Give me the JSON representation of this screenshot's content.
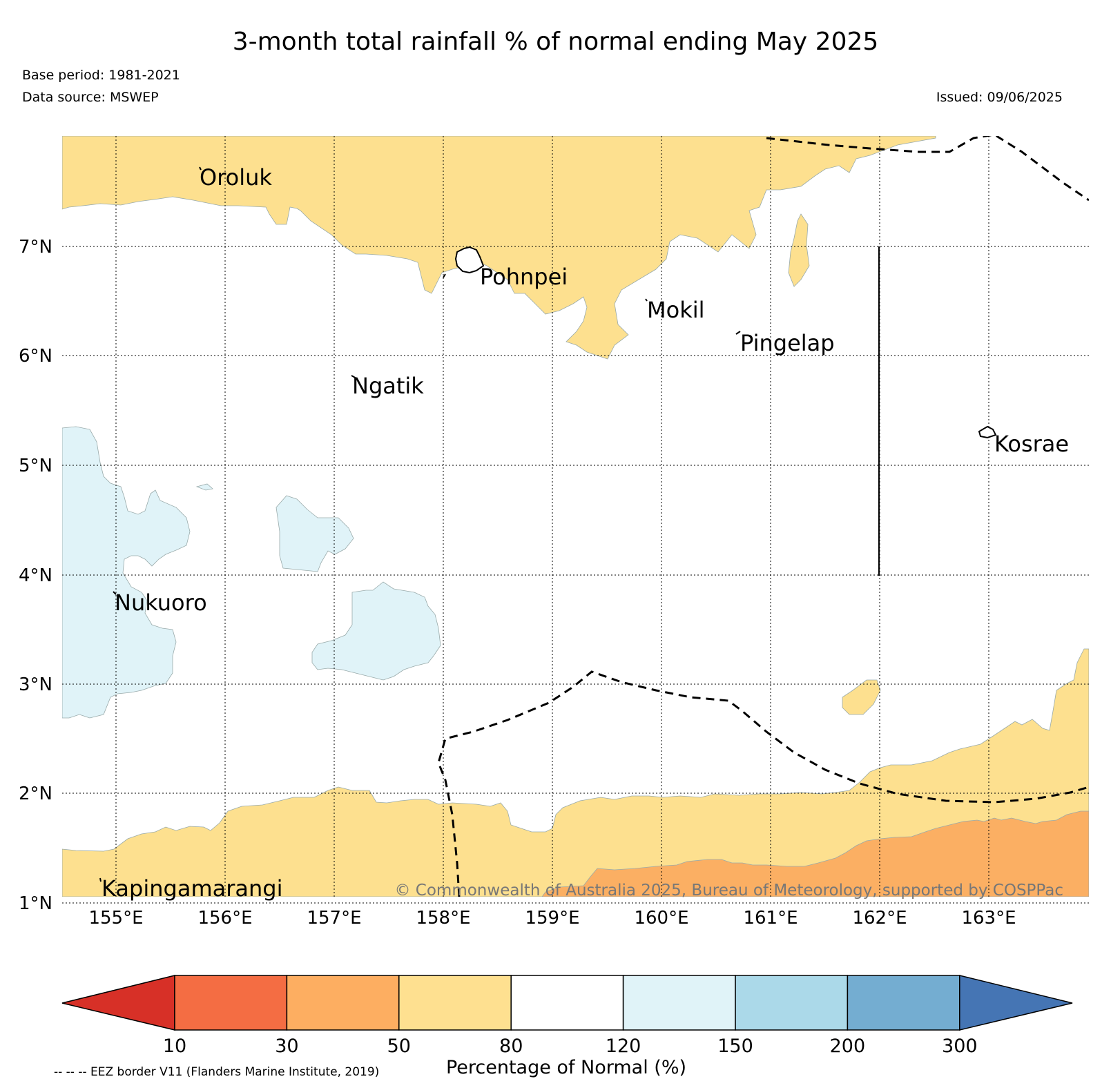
{
  "header": {
    "title": "3-month total rainfall % of normal ending May 2025",
    "base_period": "Base period: 1981-2021",
    "data_source": "Data source: MSWEP",
    "issued": "Issued: 09/06/2025"
  },
  "map": {
    "lon_ticks": [
      "155°E",
      "156°E",
      "157°E",
      "158°E",
      "159°E",
      "160°E",
      "161°E",
      "162°E",
      "163°E"
    ],
    "lat_ticks": [
      "7°N",
      "6°N",
      "5°N",
      "4°N",
      "3°N",
      "2°N",
      "1°N"
    ],
    "places": [
      {
        "name": "Oroluk"
      },
      {
        "name": "Pohnpei"
      },
      {
        "name": "Mokil"
      },
      {
        "name": "Pingelap"
      },
      {
        "name": "Ngatik"
      },
      {
        "name": "Kosrae"
      },
      {
        "name": "Nukuoro"
      },
      {
        "name": "Kapingamarangi"
      }
    ],
    "copyright": "© Commonwealth of Australia 2025, Bureau of Meteorology, supported by COSPPac",
    "colors": {
      "very_below": "#fde08f",
      "much_below": "#fbaf63",
      "above": "#e0f3f8",
      "land_outline": "#000000"
    }
  },
  "colorbar": {
    "title": "Percentage of Normal (%)",
    "labels": [
      "10",
      "30",
      "50",
      "80",
      "120",
      "150",
      "200",
      "300"
    ],
    "colors": [
      "#d73027",
      "#f46d43",
      "#fdae61",
      "#fee090",
      "#ffffff",
      "#e0f3f8",
      "#abd9e9",
      "#74add1",
      "#4575b4"
    ]
  },
  "footer": {
    "eez_note": "-- -- -- EEZ border V11 (Flanders Marine Institute, 2019)"
  }
}
